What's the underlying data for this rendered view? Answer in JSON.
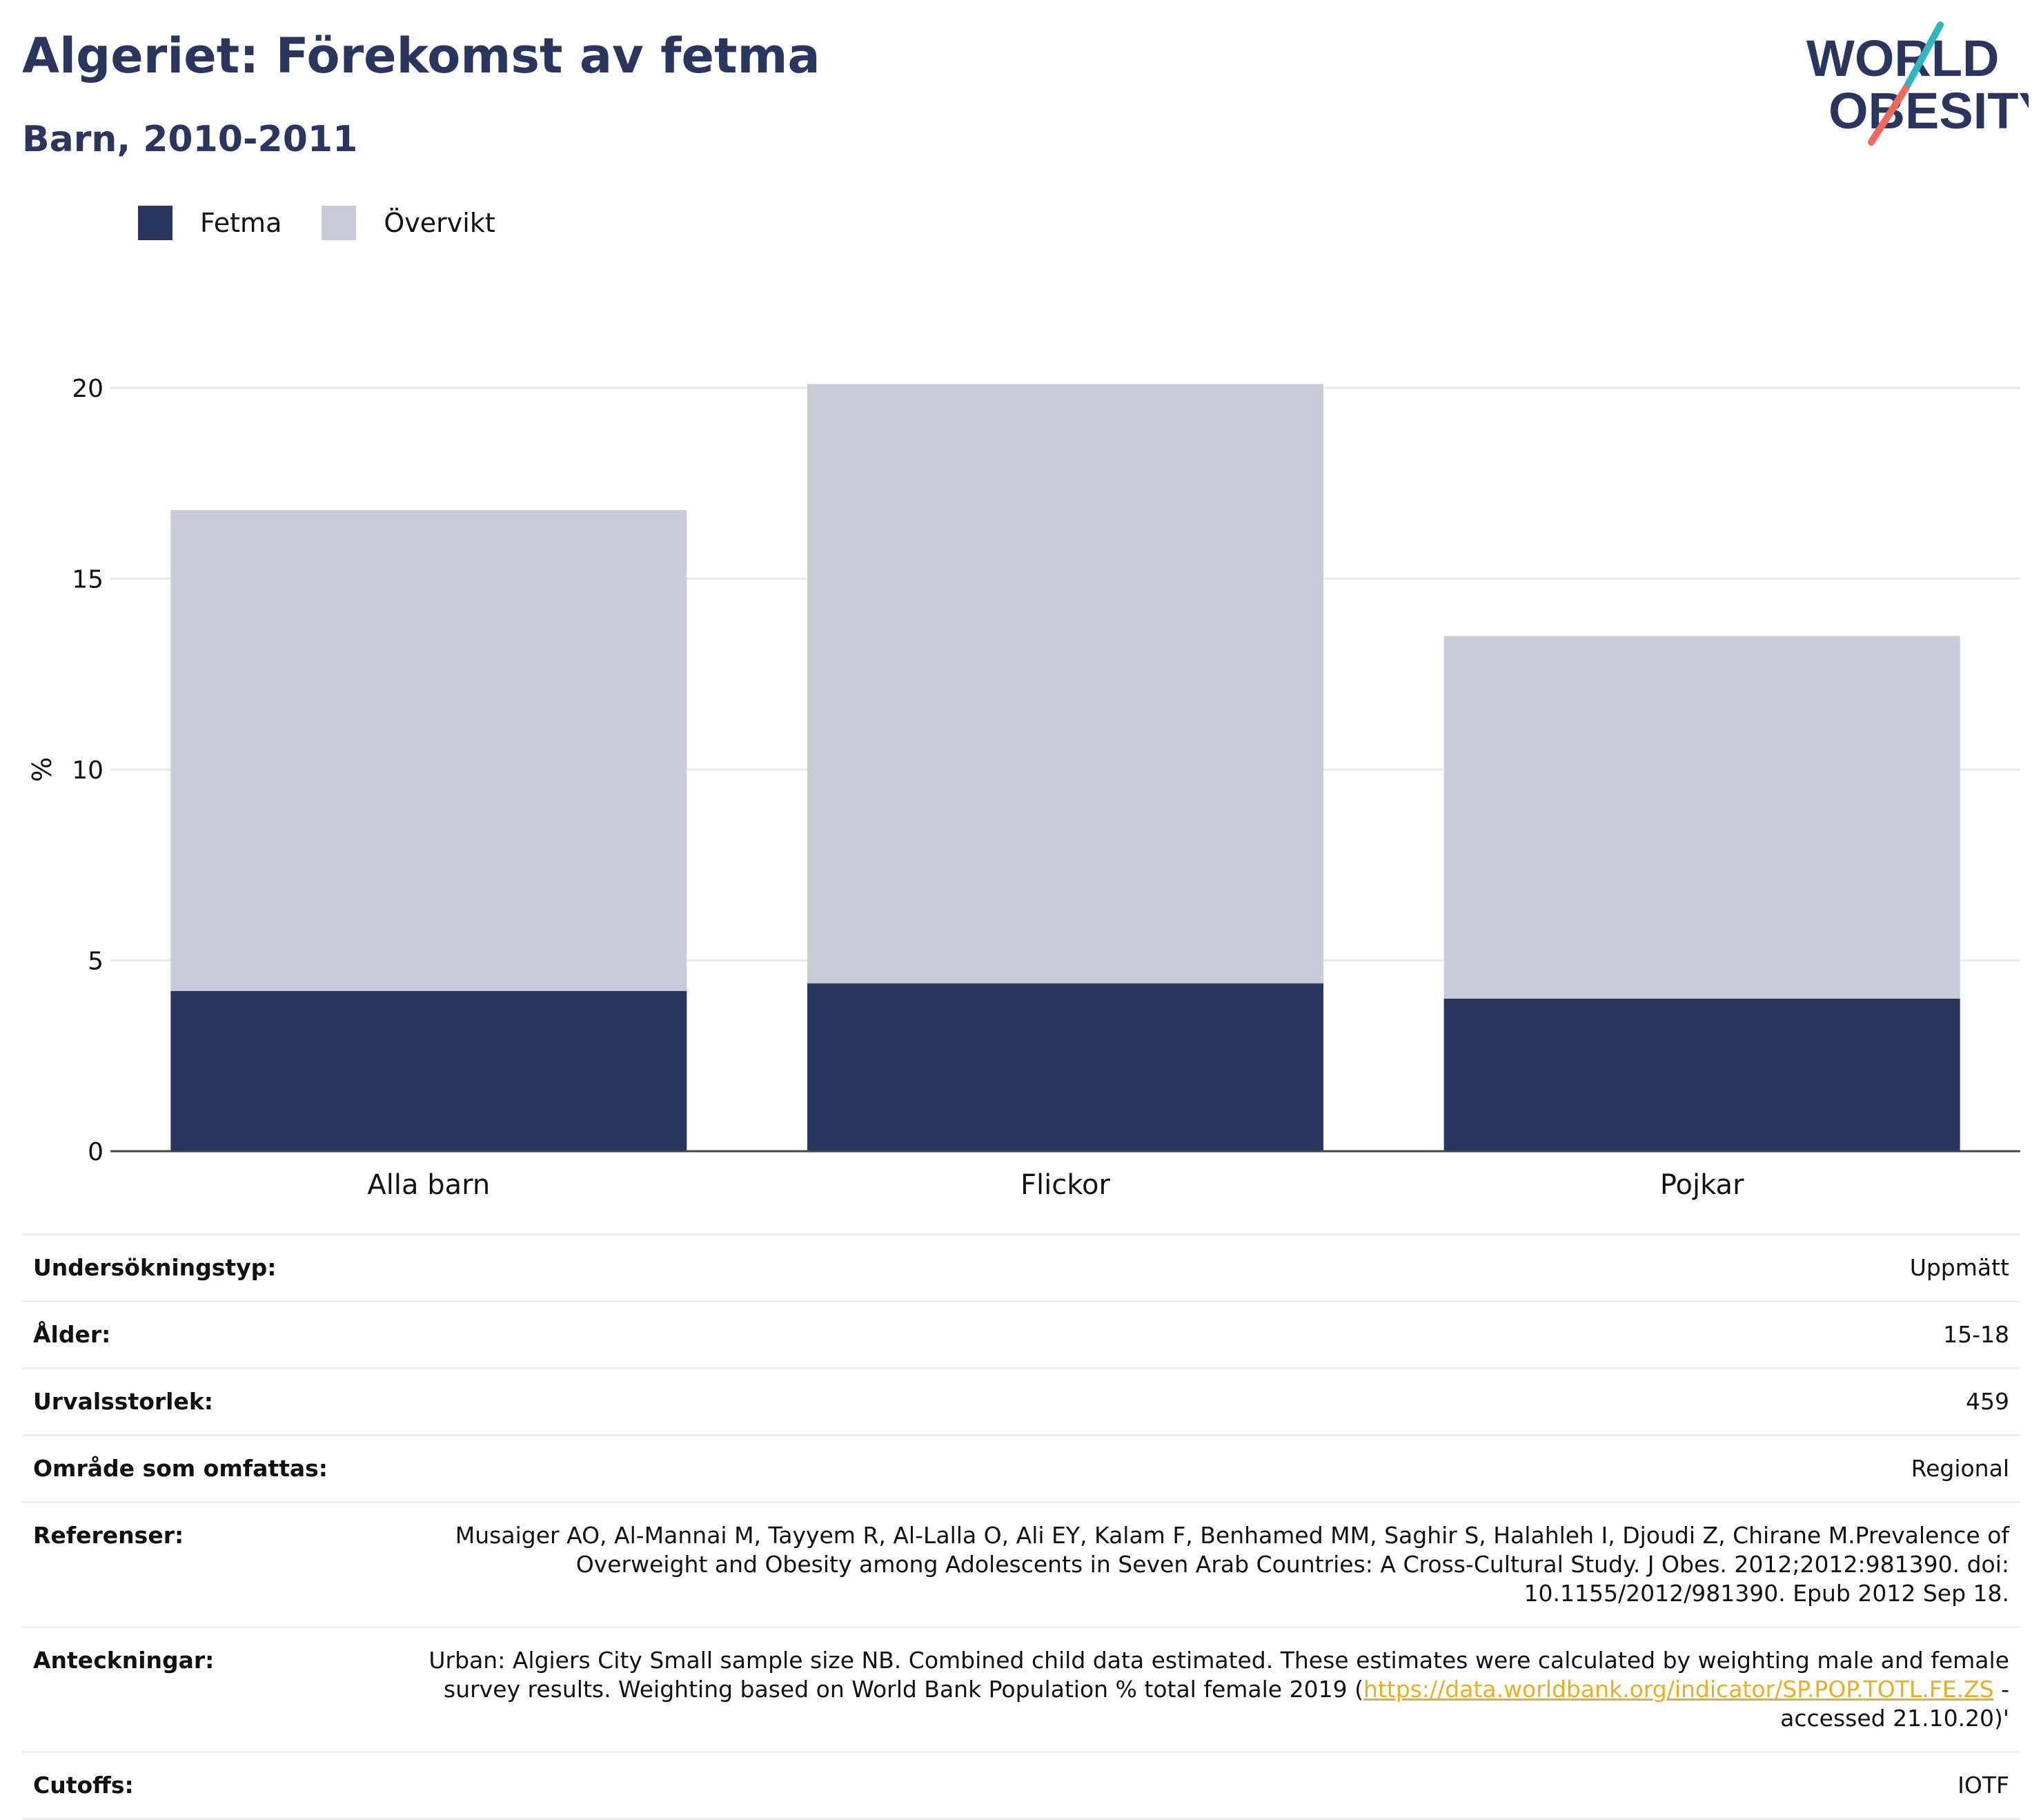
{
  "header": {
    "title": "Algeriet: Förekomst av fetma",
    "subtitle": "Barn, 2010-2011"
  },
  "logo": {
    "line1": "WORLD",
    "line2": "OBESITY"
  },
  "colors": {
    "obese": "#2b365f",
    "overweight": "#c9ccd8",
    "title": "#2b365f",
    "link": "#e8b020",
    "logo_teal": "#2fb6c3",
    "logo_coral": "#ef6a5a"
  },
  "chart_data": {
    "type": "bar",
    "stacked": true,
    "categories": [
      "Alla barn",
      "Flickor",
      "Pojkar"
    ],
    "series": [
      {
        "name": "Fetma",
        "values": [
          4.2,
          4.4,
          4.0
        ]
      },
      {
        "name": "Övervikt",
        "values": [
          12.6,
          15.7,
          9.5
        ]
      }
    ],
    "ylabel": "%",
    "yticks": [
      "0",
      "5",
      "10",
      "15",
      "20"
    ],
    "ylim": [
      0,
      20
    ],
    "grid": true,
    "legend_position": "top-left"
  },
  "info": {
    "rows": [
      {
        "key": "Undersökningstyp:",
        "value": "Uppmätt"
      },
      {
        "key": "Ålder:",
        "value": "15-18"
      },
      {
        "key": "Urvalsstorlek:",
        "value": "459"
      },
      {
        "key": "Område som omfattas:",
        "value": "Regional"
      },
      {
        "key": "Referenser:",
        "value": "Musaiger AO, Al-Mannai M, Tayyem R, Al-Lalla O, Ali EY, Kalam F, Benhamed MM, Saghir S, Halahleh I, Djoudi Z, Chirane M.Prevalence of Overweight and Obesity among Adolescents in Seven Arab Countries: A Cross-Cultural Study. J Obes. 2012;2012:981390. doi: 10.1155/2012/981390. Epub 2012 Sep 18."
      }
    ],
    "notes": {
      "key": "Anteckningar:",
      "text_before": "Urban: Algiers City Small sample size NB. Combined child data estimated. These estimates were calculated by weighting male and female survey results. Weighting based on World Bank Population % total female 2019 (",
      "link": "https://data.worldbank.org/indicator/SP.POP.TOTL.FE.ZS",
      "text_after": " - accessed 21.10.20)'"
    },
    "cutoffs": {
      "key": "Cutoffs:",
      "value": "IOTF"
    }
  }
}
